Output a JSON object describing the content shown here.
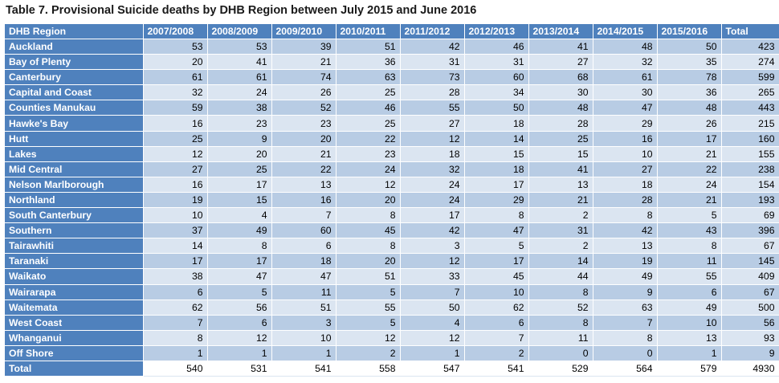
{
  "caption": "Table 7.  Provisional Suicide deaths by DHB Region between July 2015 and June 2016",
  "headers": [
    "DHB Region",
    "2007/2008",
    "2008/2009",
    "2009/2010",
    "2010/2011",
    "2011/2012",
    "2012/2013",
    "2013/2014",
    "2014/2015",
    "2015/2016",
    "Total"
  ],
  "rows": [
    {
      "region": "Auckland",
      "values": [
        "53",
        "53",
        "39",
        "51",
        "42",
        "46",
        "41",
        "48",
        "50",
        "423"
      ]
    },
    {
      "region": "Bay of Plenty",
      "values": [
        "20",
        "41",
        "21",
        "36",
        "31",
        "31",
        "27",
        "32",
        "35",
        "274"
      ]
    },
    {
      "region": "Canterbury",
      "values": [
        "61",
        "61",
        "74",
        "63",
        "73",
        "60",
        "68",
        "61",
        "78",
        "599"
      ]
    },
    {
      "region": "Capital and Coast",
      "values": [
        "32",
        "24",
        "26",
        "25",
        "28",
        "34",
        "30",
        "30",
        "36",
        "265"
      ]
    },
    {
      "region": "Counties Manukau",
      "values": [
        "59",
        "38",
        "52",
        "46",
        "55",
        "50",
        "48",
        "47",
        "48",
        "443"
      ]
    },
    {
      "region": "Hawke's Bay",
      "values": [
        "16",
        "23",
        "23",
        "25",
        "27",
        "18",
        "28",
        "29",
        "26",
        "215"
      ]
    },
    {
      "region": "Hutt",
      "values": [
        "25",
        "9",
        "20",
        "22",
        "12",
        "14",
        "25",
        "16",
        "17",
        "160"
      ]
    },
    {
      "region": "Lakes",
      "values": [
        "12",
        "20",
        "21",
        "23",
        "18",
        "15",
        "15",
        "10",
        "21",
        "155"
      ]
    },
    {
      "region": "Mid Central",
      "values": [
        "27",
        "25",
        "22",
        "24",
        "32",
        "18",
        "41",
        "27",
        "22",
        "238"
      ]
    },
    {
      "region": "Nelson Marlborough",
      "values": [
        "16",
        "17",
        "13",
        "12",
        "24",
        "17",
        "13",
        "18",
        "24",
        "154"
      ]
    },
    {
      "region": "Northland",
      "values": [
        "19",
        "15",
        "16",
        "20",
        "24",
        "29",
        "21",
        "28",
        "21",
        "193"
      ]
    },
    {
      "region": "South Canterbury",
      "values": [
        "10",
        "4",
        "7",
        "8",
        "17",
        "8",
        "2",
        "8",
        "5",
        "69"
      ]
    },
    {
      "region": "Southern",
      "values": [
        "37",
        "49",
        "60",
        "45",
        "42",
        "47",
        "31",
        "42",
        "43",
        "396"
      ]
    },
    {
      "region": "Tairawhiti",
      "values": [
        "14",
        "8",
        "6",
        "8",
        "3",
        "5",
        "2",
        "13",
        "8",
        "67"
      ]
    },
    {
      "region": "Taranaki",
      "values": [
        "17",
        "17",
        "18",
        "20",
        "12",
        "17",
        "14",
        "19",
        "11",
        "145"
      ]
    },
    {
      "region": "Waikato",
      "values": [
        "38",
        "47",
        "47",
        "51",
        "33",
        "45",
        "44",
        "49",
        "55",
        "409"
      ]
    },
    {
      "region": "Wairarapa",
      "values": [
        "6",
        "5",
        "11",
        "5",
        "7",
        "10",
        "8",
        "9",
        "6",
        "67"
      ]
    },
    {
      "region": "Waitemata",
      "values": [
        "62",
        "56",
        "51",
        "55",
        "50",
        "62",
        "52",
        "63",
        "49",
        "500"
      ]
    },
    {
      "region": "West Coast",
      "values": [
        "7",
        "6",
        "3",
        "5",
        "4",
        "6",
        "8",
        "7",
        "10",
        "56"
      ]
    },
    {
      "region": "Whanganui",
      "values": [
        "8",
        "12",
        "10",
        "12",
        "12",
        "7",
        "11",
        "8",
        "13",
        "93"
      ]
    },
    {
      "region": "Off Shore",
      "values": [
        "1",
        "1",
        "1",
        "2",
        "1",
        "2",
        "0",
        "0",
        "1",
        "9"
      ]
    }
  ],
  "total": {
    "region": "Total",
    "values": [
      "540",
      "531",
      "541",
      "558",
      "547",
      "541",
      "529",
      "564",
      "579",
      "4930"
    ]
  },
  "colors": {
    "header_blue": "#4f81bd",
    "band_dark": "#b8cce4",
    "band_light": "#dbe5f1"
  }
}
